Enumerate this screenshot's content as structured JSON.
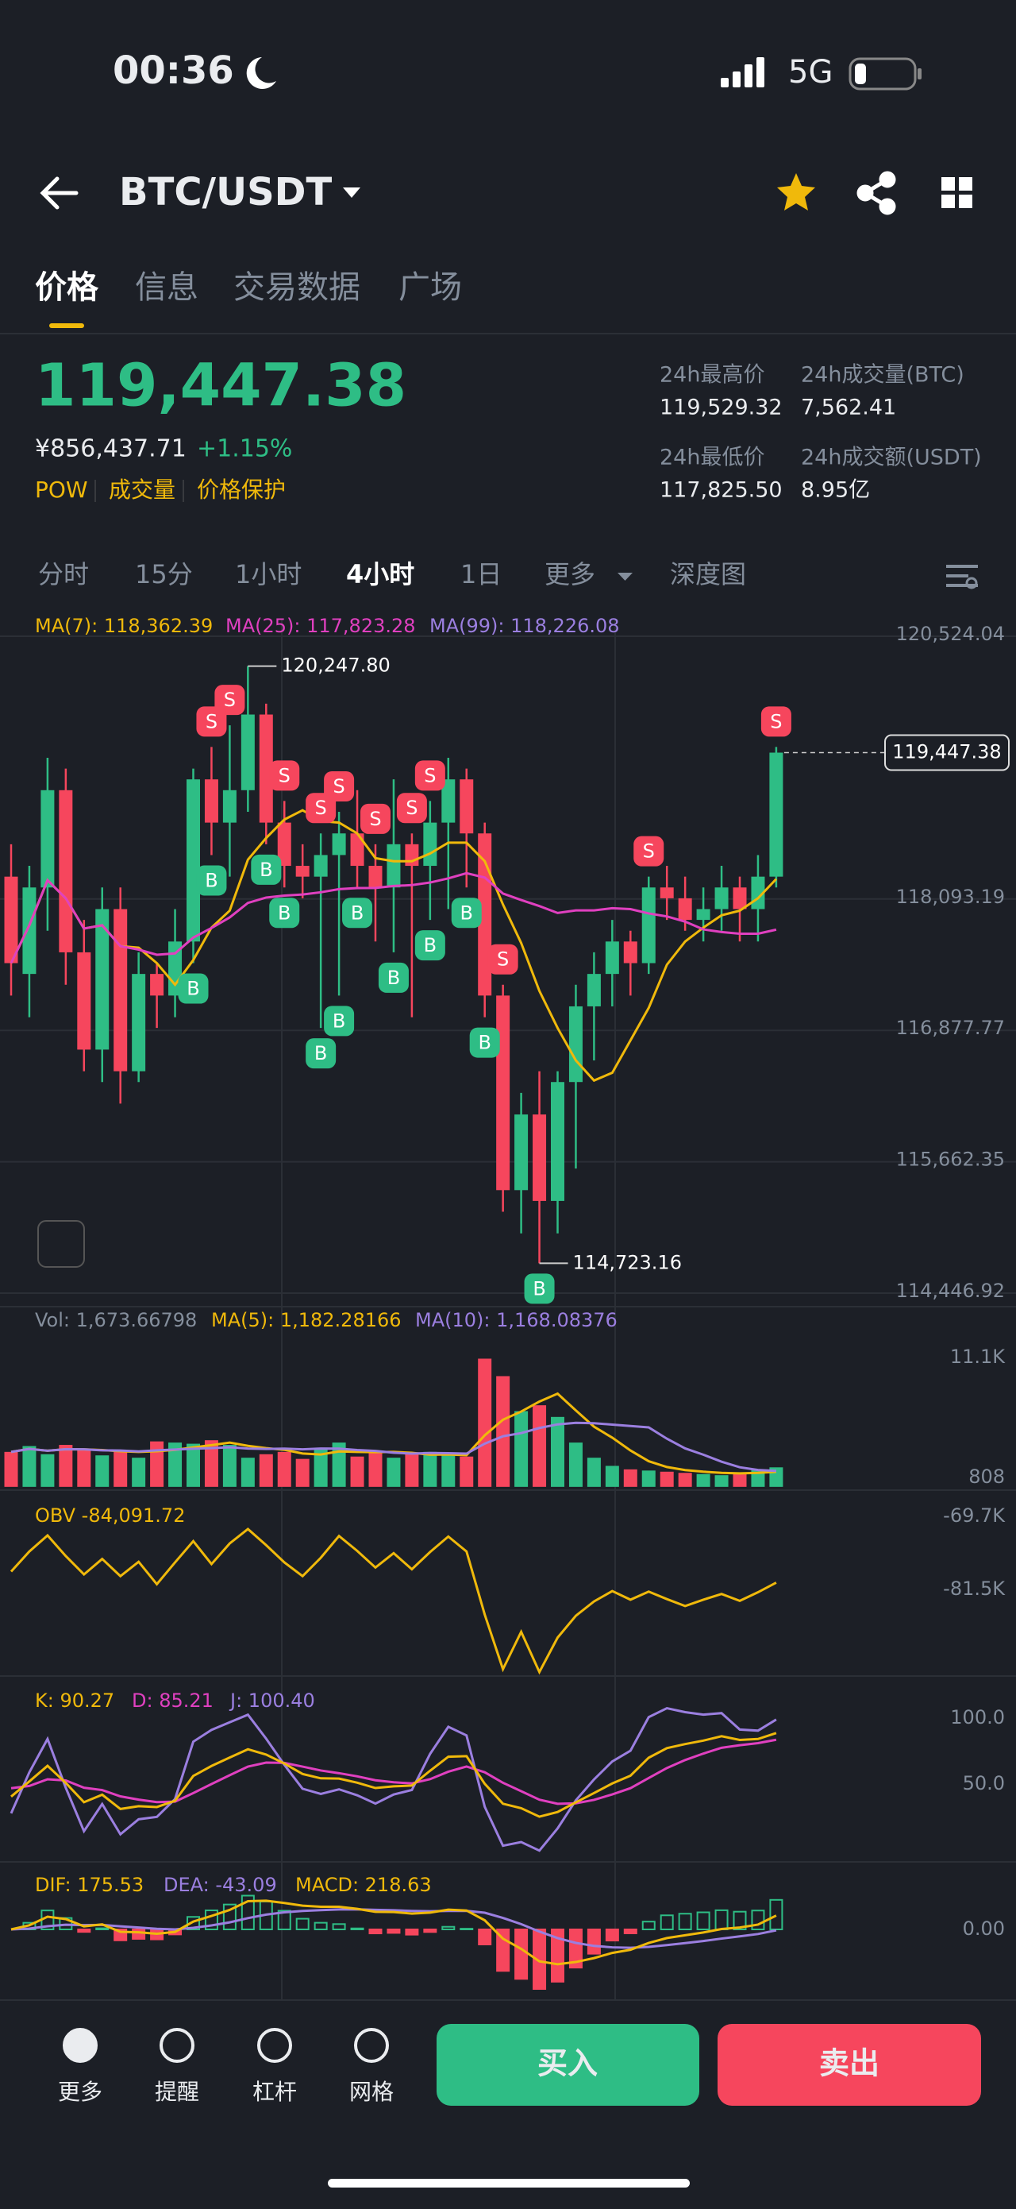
{
  "status_bar": {
    "time": "00:36",
    "network": "5G"
  },
  "header": {
    "pair": "BTC/USDT"
  },
  "tabs": [
    "价格",
    "信息",
    "交易数据",
    "广场"
  ],
  "ticker": {
    "price": "119,447.38",
    "cny": "¥856,437.71",
    "change": "+1.15%",
    "tags": [
      "POW",
      "成交量",
      "价格保护"
    ],
    "stats": [
      {
        "label": "24h最高价",
        "value": "119,529.32"
      },
      {
        "label": "24h成交量(BTC)",
        "value": "7,562.41"
      },
      {
        "label": "24h最低价",
        "value": "117,825.50"
      },
      {
        "label": "24h成交额(USDT)",
        "value": "8.95亿"
      }
    ]
  },
  "intervals": [
    "分时",
    "15分",
    "1小时",
    "4小时",
    "1日",
    "更多",
    "深度图"
  ],
  "kline": {
    "ma_labels": [
      "MA(7): 118,362.39",
      "MA(25): 117,823.28",
      "MA(99): 118,226.08"
    ],
    "yticks": [
      {
        "value": 120524.04,
        "label": "120,524.04"
      },
      {
        "value": 118093.19,
        "label": "118,093.19"
      },
      {
        "value": 116877.77,
        "label": "116,877.77"
      },
      {
        "value": 115662.35,
        "label": "115,662.35"
      },
      {
        "value": 114446.92,
        "label": "114,446.92"
      }
    ],
    "last": {
      "value": 119447.38,
      "label": "119,447.38"
    },
    "high": {
      "value": 120247.8,
      "label": "120,247.80"
    },
    "low": {
      "value": 114723.16,
      "label": "114,723.16"
    },
    "candles": [
      [
        118300,
        118600,
        117200,
        117500
      ],
      [
        117400,
        118400,
        117000,
        118200
      ],
      [
        118200,
        119400,
        117800,
        119100
      ],
      [
        119100,
        119300,
        117300,
        117600
      ],
      [
        117600,
        117900,
        116500,
        116700
      ],
      [
        116700,
        118200,
        116400,
        118000
      ],
      [
        118000,
        118200,
        116200,
        116500
      ],
      [
        116500,
        117600,
        116400,
        117400
      ],
      [
        117400,
        117500,
        116900,
        117200
      ],
      [
        117200,
        118000,
        117000,
        117700
      ],
      [
        117700,
        119300,
        117500,
        119200
      ],
      [
        119200,
        119500,
        118500,
        118800
      ],
      [
        118800,
        119700,
        118300,
        119100
      ],
      [
        119100,
        120247.8,
        118900,
        119800
      ],
      [
        119800,
        119900,
        118600,
        118800
      ],
      [
        118800,
        119000,
        118200,
        118400
      ],
      [
        118400,
        118600,
        118100,
        118300
      ],
      [
        118300,
        118700,
        116900,
        118500
      ],
      [
        118500,
        118900,
        117200,
        118700
      ],
      [
        118700,
        119100,
        118200,
        118400
      ],
      [
        118400,
        118600,
        117700,
        118200
      ],
      [
        118200,
        119200,
        117600,
        118600
      ],
      [
        118600,
        118700,
        117000,
        118400
      ],
      [
        118400,
        119000,
        117900,
        118800
      ],
      [
        118800,
        119400,
        118000,
        119200
      ],
      [
        119200,
        119300,
        118200,
        118700
      ],
      [
        118700,
        118800,
        117000,
        117200
      ],
      [
        117200,
        117300,
        115200,
        115400
      ],
      [
        115400,
        116300,
        115000,
        116100
      ],
      [
        116100,
        116500,
        114723.16,
        115300
      ],
      [
        115300,
        116500,
        115000,
        116400
      ],
      [
        116400,
        117300,
        115600,
        117100
      ],
      [
        117100,
        117600,
        116600,
        117400
      ],
      [
        117400,
        117900,
        117100,
        117700
      ],
      [
        117700,
        117800,
        117200,
        117500
      ],
      [
        117500,
        118300,
        117400,
        118200
      ],
      [
        118200,
        118400,
        117900,
        118100
      ],
      [
        118100,
        118300,
        117800,
        117900
      ],
      [
        117900,
        118200,
        117700,
        118000
      ],
      [
        118000,
        118400,
        117800,
        118200
      ],
      [
        118200,
        118300,
        117700,
        118000
      ],
      [
        118000,
        118500,
        117700,
        118300
      ],
      [
        118300,
        119500,
        118200,
        119447.38
      ]
    ],
    "markers": [
      {
        "i": 12,
        "label": "S"
      },
      {
        "i": 11,
        "label": "S"
      },
      {
        "i": 15,
        "label": "S"
      },
      {
        "i": 17,
        "label": "S"
      },
      {
        "i": 18,
        "label": "S"
      },
      {
        "i": 20,
        "label": "S"
      },
      {
        "i": 22,
        "label": "S"
      },
      {
        "i": 23,
        "label": "S"
      },
      {
        "i": 27,
        "label": "S"
      },
      {
        "i": 35,
        "label": "S"
      },
      {
        "i": 42,
        "label": "S"
      },
      {
        "i": 10,
        "label": "B"
      },
      {
        "i": 11,
        "label": "B"
      },
      {
        "i": 14,
        "label": "B"
      },
      {
        "i": 15,
        "label": "B"
      },
      {
        "i": 17,
        "label": "B"
      },
      {
        "i": 18,
        "label": "B"
      },
      {
        "i": 19,
        "label": "B"
      },
      {
        "i": 21,
        "label": "B"
      },
      {
        "i": 23,
        "label": "B"
      },
      {
        "i": 25,
        "label": "B"
      },
      {
        "i": 26,
        "label": "B"
      },
      {
        "i": 29,
        "label": "B"
      }
    ]
  },
  "volume": {
    "labels": [
      "Vol: 1,673.66798",
      "MA(5): 1,182.28166",
      "MA(10): 1,168.08376"
    ],
    "yticks": [
      {
        "value": 11100,
        "label": "11.1K"
      },
      808
    ],
    "values": [
      3000,
      3500,
      2800,
      3600,
      3200,
      2700,
      3000,
      2500,
      3900,
      3800,
      3700,
      4000,
      3600,
      2500,
      2800,
      3000,
      2400,
      3200,
      3800,
      2600,
      2900,
      2500,
      2800,
      3000,
      2700,
      2600,
      11000,
      9500,
      6500,
      7000,
      6000,
      3800,
      2500,
      1800,
      1500,
      1400,
      1300,
      1200,
      1100,
      1000,
      1200,
      1500,
      1673.67
    ]
  },
  "obv": {
    "label": "OBV -84,091.72",
    "yticks": [
      {
        "value": -69700,
        "label": "-69.7K"
      },
      {
        "value": -81500,
        "label": "-81.5K"
      }
    ]
  },
  "kdj": {
    "labels": [
      "K: 90.27",
      "D: 85.21",
      "J: 100.40"
    ],
    "yticks": [
      {
        "value": 100,
        "label": "100.0"
      },
      {
        "value": 50,
        "label": "50.0"
      }
    ]
  },
  "macd": {
    "labels": [
      "DIF: 175.53",
      "DEA: -43.09",
      "MACD: 218.63"
    ],
    "yticks": [
      {
        "value": 0,
        "label": "0.00"
      }
    ]
  },
  "toolbar": {
    "items": [
      "更多",
      "提醒",
      "杠杆",
      "网格"
    ],
    "buy": "买入",
    "sell": "卖出"
  }
}
